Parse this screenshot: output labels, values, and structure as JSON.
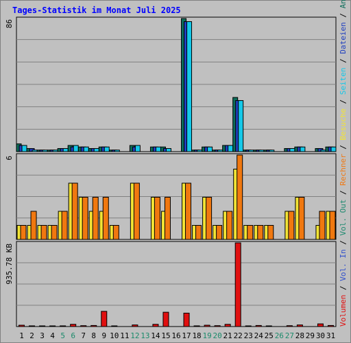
{
  "colors": {
    "background": "#c0c0c0",
    "panel": "#c0c0c0",
    "grid": "#808080",
    "title": "#0000ff",
    "anfragen": "#0d6e5b",
    "dateien": "#1f3fbf",
    "seiten": "#15c8e8",
    "besuche": "#f2e335",
    "rechner": "#f07810",
    "vol_in": "#3050cc",
    "vol_out": "#1f8a70",
    "volumen": "#e01010",
    "weekend_label": "#1a8a6a",
    "label": "#000000"
  },
  "chart_data": {
    "type": "bar",
    "title": "Tages-Statistik im Monat Juli 2025",
    "x": [
      "1",
      "2",
      "3",
      "4",
      "5",
      "6",
      "7",
      "8",
      "9",
      "10",
      "11",
      "12",
      "13",
      "14",
      "15",
      "16",
      "17",
      "18",
      "19",
      "20",
      "21",
      "22",
      "23",
      "24",
      "25",
      "26",
      "27",
      "28",
      "29",
      "30",
      "31"
    ],
    "weekend_days": [
      "5",
      "6",
      "12",
      "13",
      "19",
      "20",
      "26",
      "27"
    ],
    "panels": [
      {
        "id": "hits",
        "ymax_label": "86",
        "ymax": 86,
        "series": [
          {
            "name": "Anfragen",
            "values": [
              5,
              2,
              1,
              1,
              2,
              4,
              3,
              2,
              3,
              1,
              0,
              4,
              0,
              3,
              3,
              0,
              86,
              1,
              3,
              1,
              4,
              35,
              1,
              1,
              1,
              0,
              2,
              3,
              0,
              2,
              3
            ]
          },
          {
            "name": "Dateien",
            "values": [
              4,
              2,
              1,
              1,
              2,
              3,
              3,
              2,
              3,
              1,
              0,
              3,
              0,
              3,
              2,
              0,
              84,
              1,
              3,
              1,
              4,
              33,
              1,
              1,
              1,
              0,
              2,
              3,
              0,
              2,
              3
            ]
          },
          {
            "name": "Seiten",
            "values": [
              4,
              1,
              1,
              1,
              2,
              4,
              3,
              2,
              3,
              1,
              0,
              4,
              0,
              3,
              2,
              0,
              84,
              1,
              3,
              1,
              4,
              33,
              1,
              1,
              1,
              0,
              2,
              3,
              0,
              1,
              3
            ]
          }
        ]
      },
      {
        "id": "visits",
        "ymax_label": "6",
        "ymax": 6,
        "series": [
          {
            "name": "Besuche",
            "values": [
              1,
              1,
              1,
              1,
              2,
              4,
              3,
              2,
              2,
              1,
              0,
              4,
              0,
              3,
              2,
              0,
              4,
              1,
              3,
              1,
              2,
              5,
              1,
              1,
              1,
              0,
              2,
              3,
              0,
              1,
              2
            ]
          },
          {
            "name": "Rechner",
            "values": [
              1,
              2,
              1,
              1,
              2,
              4,
              3,
              3,
              3,
              1,
              0,
              4,
              0,
              3,
              3,
              0,
              4,
              1,
              3,
              1,
              2,
              6,
              1,
              1,
              1,
              0,
              2,
              3,
              0,
              2,
              2
            ]
          }
        ]
      },
      {
        "id": "volume",
        "ymax_label": "935.78 KB",
        "ymax": 935.78,
        "series": [
          {
            "name": "Volumen",
            "values": [
              15,
              8,
              6,
              6,
              8,
              25,
              10,
              12,
              170,
              5,
              0,
              18,
              0,
              25,
              160,
              0,
              150,
              8,
              15,
              10,
              25,
              935.78,
              6,
              12,
              5,
              0,
              10,
              18,
              0,
              30,
              12
            ]
          }
        ]
      }
    ],
    "legend_items": [
      {
        "name": "Volumen"
      },
      {
        "sep": " / "
      },
      {
        "name": "Vol. In"
      },
      {
        "sep": " / "
      },
      {
        "name": "Vol. Out"
      },
      {
        "sep": " / "
      },
      {
        "name": "Rechner"
      },
      {
        "sep": " / "
      },
      {
        "name": "Besuche"
      },
      {
        "sep": " / "
      },
      {
        "name": "Seiten"
      },
      {
        "sep": " / "
      },
      {
        "name": "Dateien"
      },
      {
        "sep": " / "
      },
      {
        "name": "Anfragen"
      }
    ],
    "legend_placement": "right-vertical",
    "grid": true
  }
}
